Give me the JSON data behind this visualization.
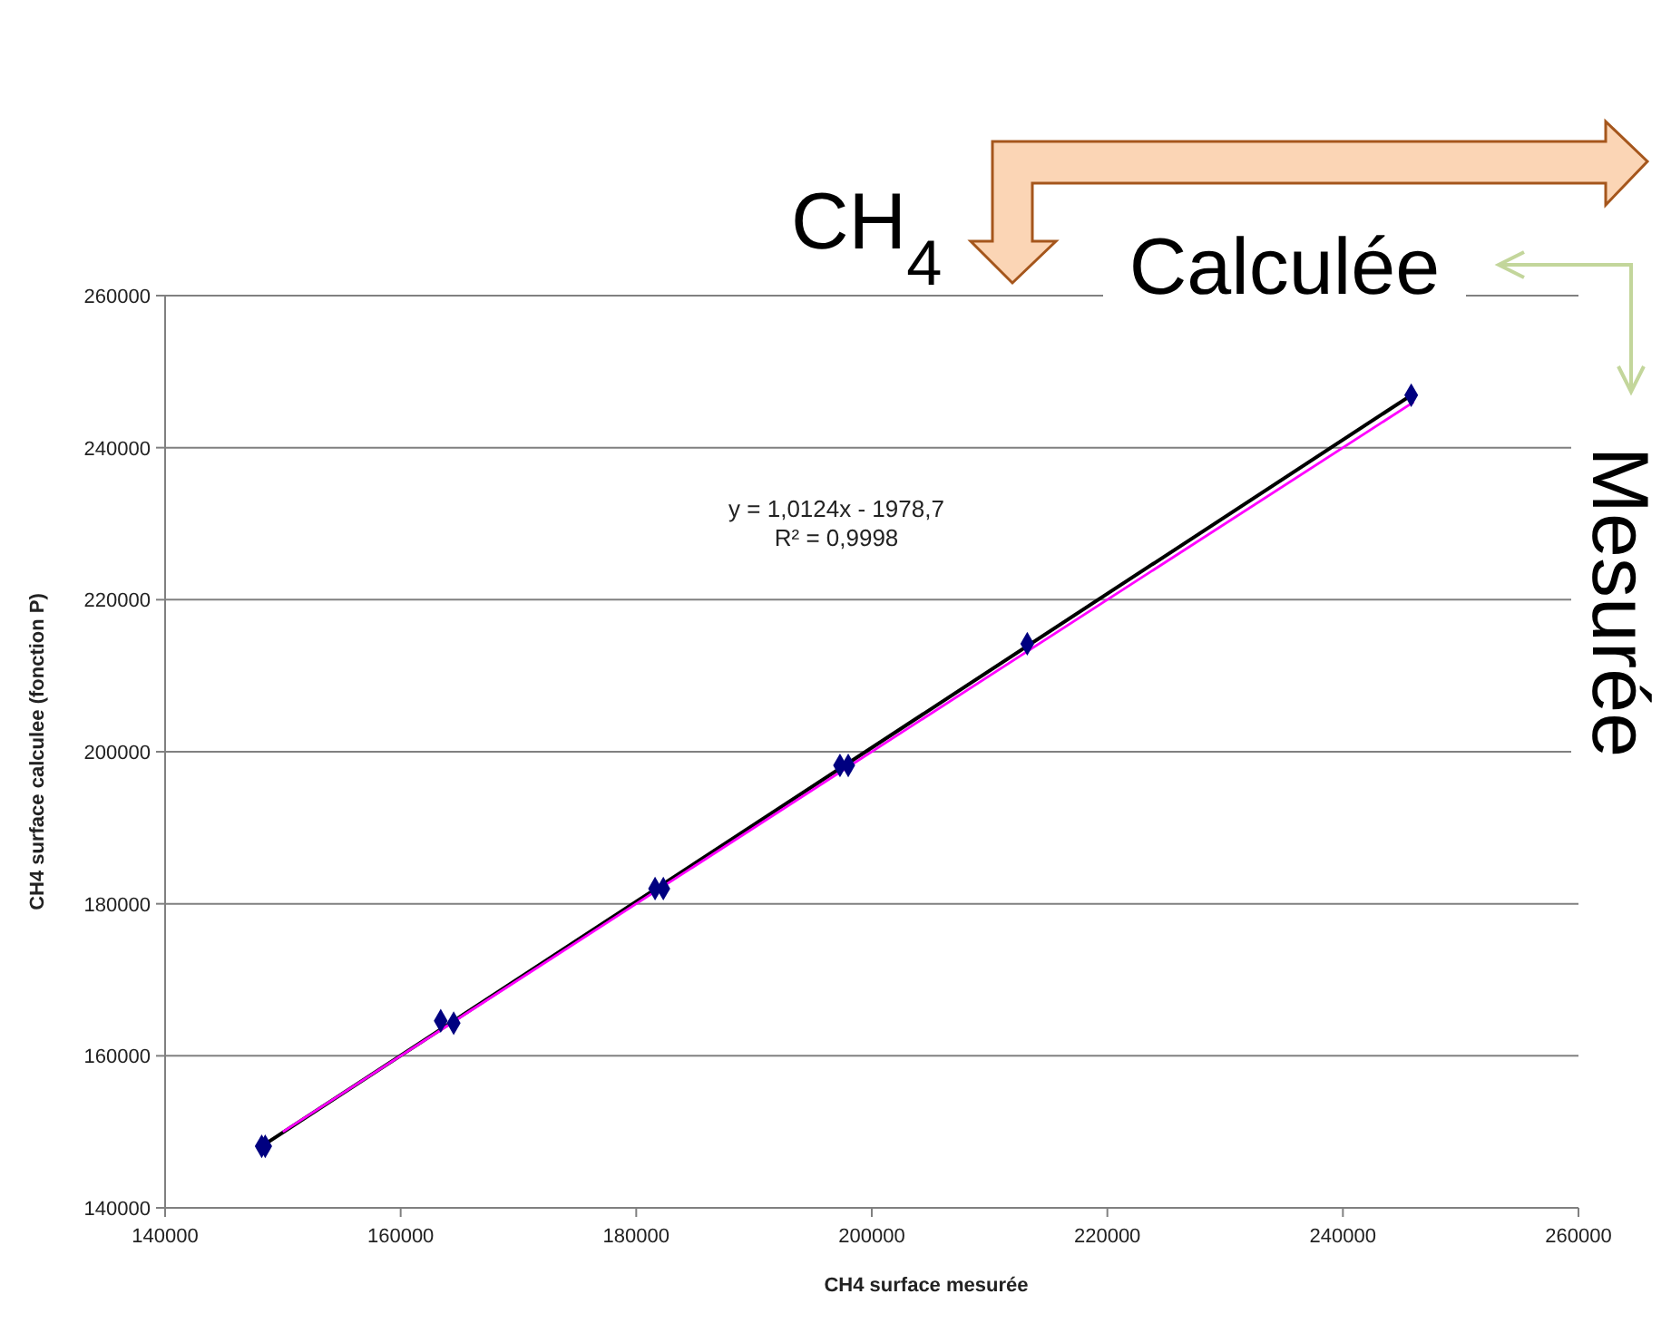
{
  "chart_data": {
    "type": "scatter",
    "xlabel": "CH4 surface mesurée",
    "ylabel": "CH4 surface calculee (fonction P)",
    "x": [
      148200,
      148500,
      163400,
      164500,
      181600,
      182300,
      197300,
      198000,
      213200,
      245800
    ],
    "series": [
      {
        "color": "#000080",
        "marker": "diamond",
        "values": [
          148100,
          148100,
          164600,
          164300,
          182000,
          182000,
          198200,
          198200,
          214200,
          246900
        ]
      },
      {
        "type": "line",
        "color": "#000000",
        "marker": "none",
        "x": [
          148200,
          245800
        ],
        "values": [
          148100,
          246900
        ]
      },
      {
        "type": "line",
        "color": "#ff00ff",
        "marker": "none",
        "x": [
          150000,
          246000
        ],
        "values": [
          150000,
          246000
        ]
      }
    ],
    "xlim": [
      140000,
      260000
    ],
    "xticks": [
      140000,
      160000,
      180000,
      200000,
      220000,
      240000,
      260000
    ],
    "ylim": [
      140000,
      260000
    ],
    "yticks": [
      140000,
      160000,
      180000,
      200000,
      220000,
      240000,
      260000
    ],
    "grid": "y",
    "annotations": [
      "y = 1,0124x - 1978,7",
      "R² = 0,9998",
      "CH$_{4}$",
      "Calculée",
      "Mesurée"
    ]
  }
}
